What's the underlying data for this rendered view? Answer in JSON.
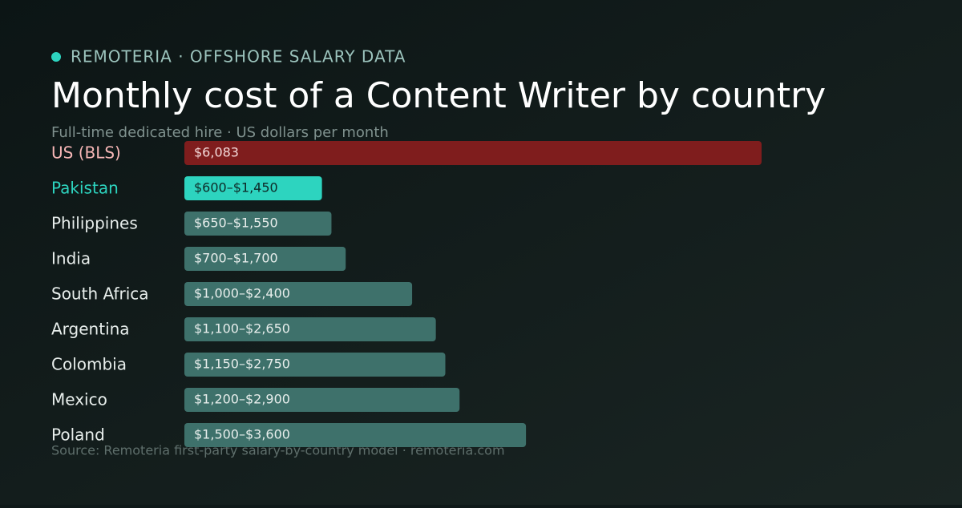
{
  "chart_data": {
    "type": "bar",
    "orientation": "horizontal",
    "brand": "REMOTERIA · OFFSHORE SALARY DATA",
    "title": "Monthly cost of a Content Writer by country",
    "subtitle": "Full-time dedicated hire · US dollars per month",
    "source": "Source: Remoteria first-party salary-by-country model · remoteria.com",
    "categories": [
      "US (BLS)",
      "Pakistan",
      "Philippines",
      "India",
      "South Africa",
      "Argentina",
      "Colombia",
      "Mexico",
      "Poland"
    ],
    "values": [
      6083,
      1450,
      1550,
      1700,
      2400,
      2650,
      2750,
      2900,
      3600
    ],
    "value_labels": [
      "$6,083",
      "$600–$1,450",
      "$650–$1,550",
      "$700–$1,700",
      "$1,000–$2,400",
      "$1,100–$2,650",
      "$1,150–$2,750",
      "$1,200–$2,900",
      "$1,500–$3,600"
    ],
    "colors": [
      "#7f1d1d",
      "#2dd4bf",
      "#3e716b",
      "#3e716b",
      "#3e716b",
      "#3e716b",
      "#3e716b",
      "#3e716b",
      "#3e716b"
    ],
    "label_colors": [
      "#f7b7b7",
      "#2dd4bf",
      "#e8eeec",
      "#e8eeec",
      "#e8eeec",
      "#e8eeec",
      "#e8eeec",
      "#e8eeec",
      "#e8eeec"
    ],
    "value_label_colors": [
      "#f3d9d9",
      "#0d2a27",
      "#e8eeec",
      "#e8eeec",
      "#e8eeec",
      "#e8eeec",
      "#e8eeec",
      "#e8eeec",
      "#e8eeec"
    ]
  }
}
